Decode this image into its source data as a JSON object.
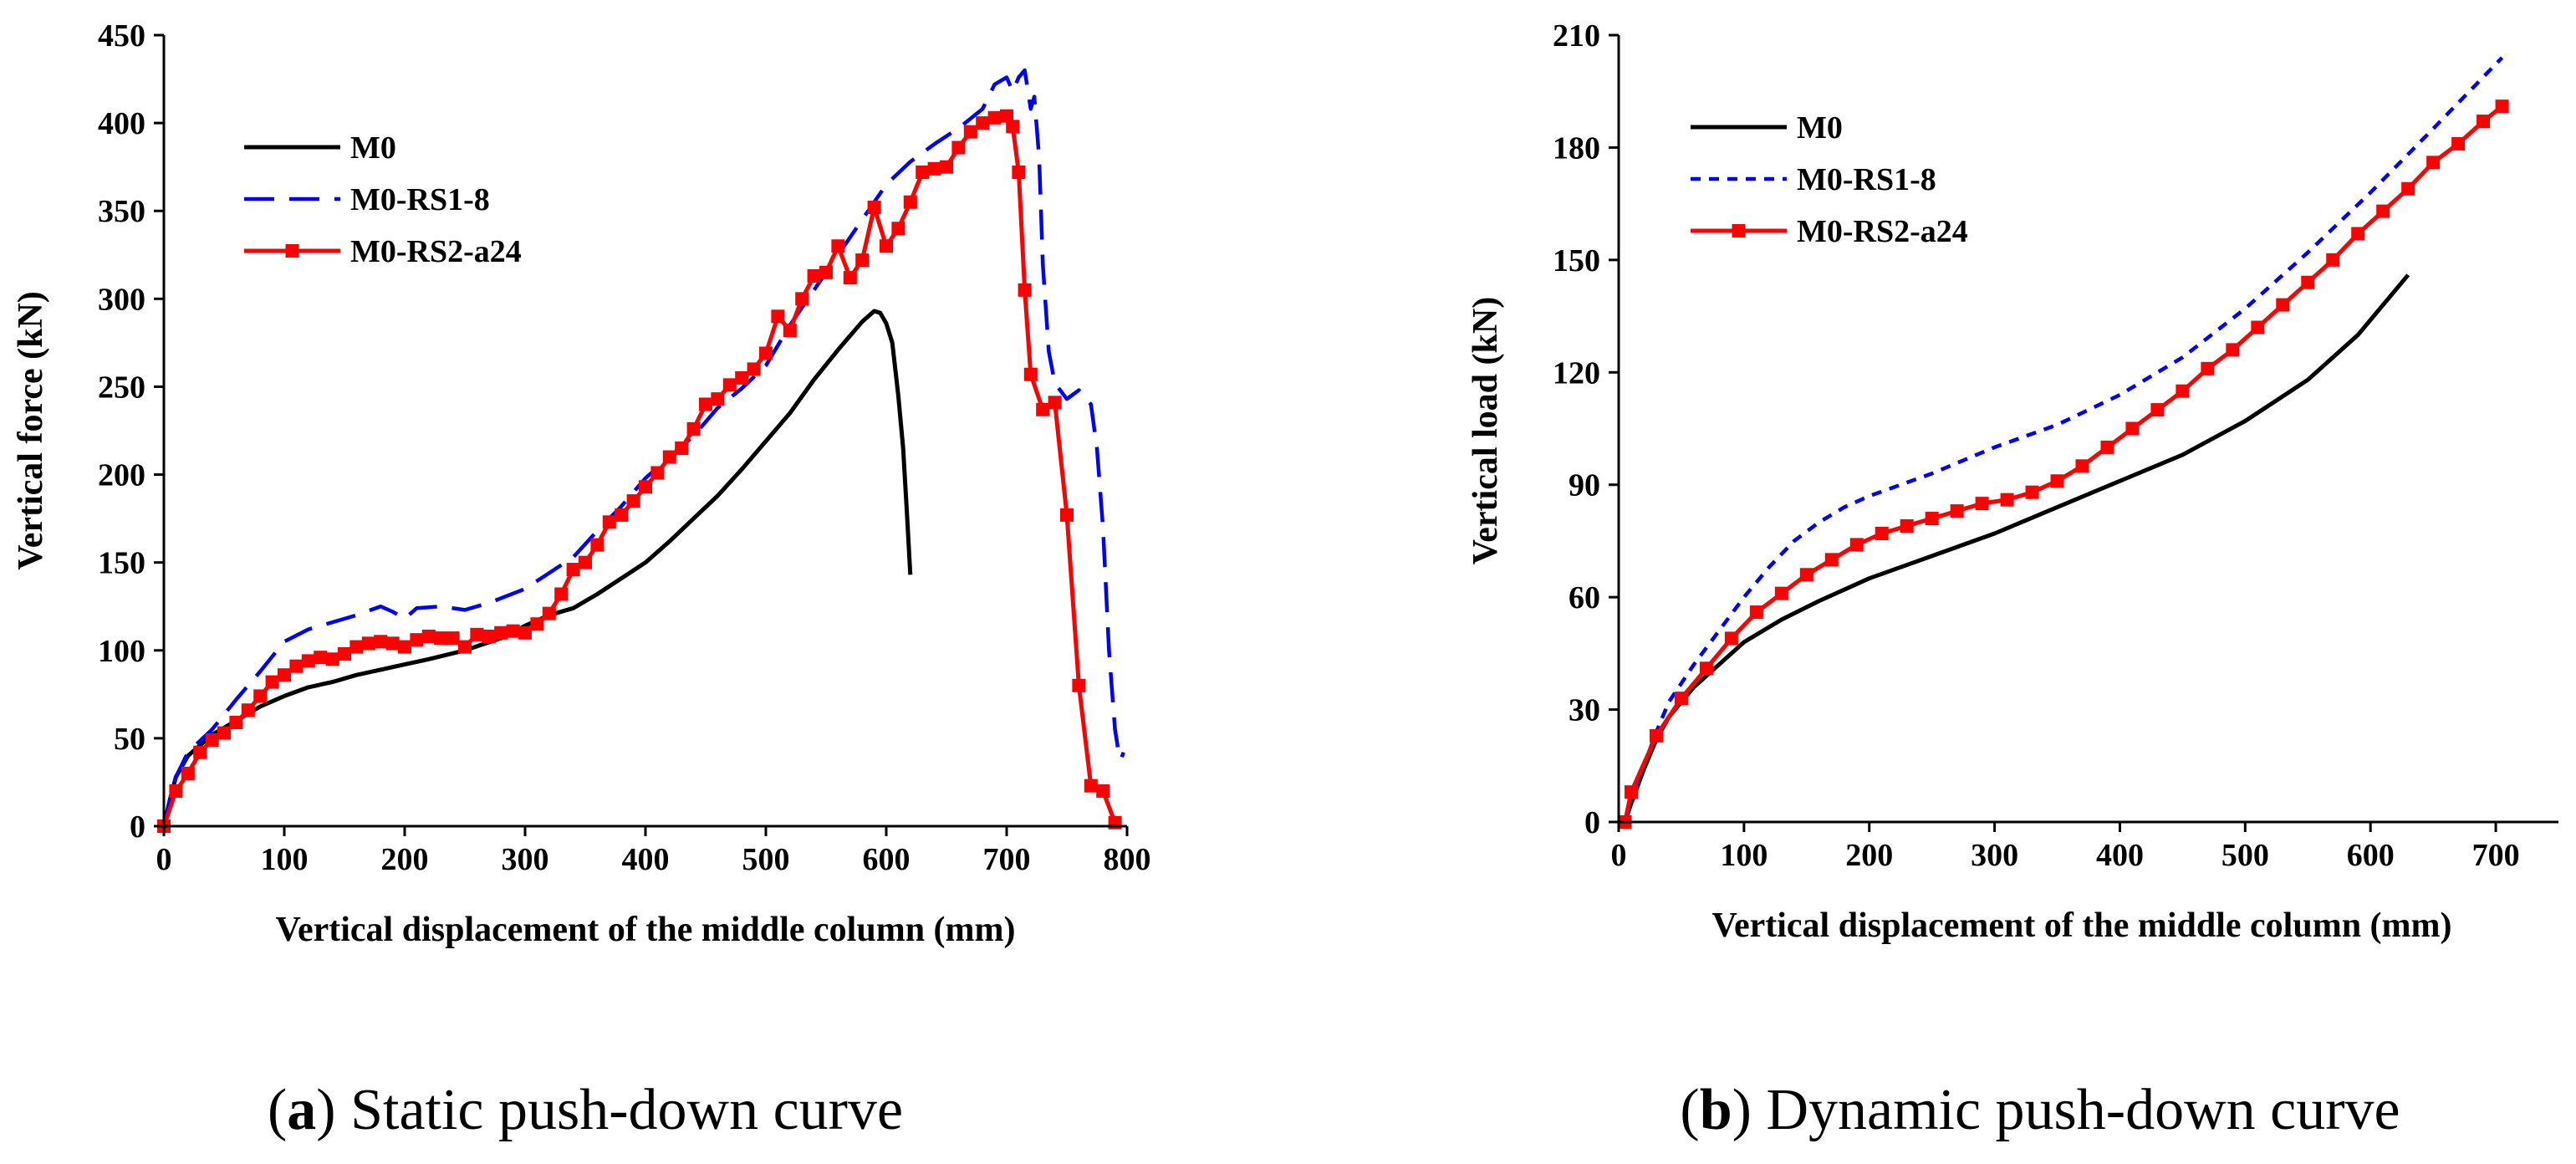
{
  "chart_data": [
    {
      "type": "line",
      "caption_letter": "a",
      "caption_text": "Static push-down curve",
      "xlabel": "Vertical displacement of the middle column (mm)",
      "ylabel": "Vertical force (kN)",
      "xlim": [
        0,
        800
      ],
      "ylim": [
        0,
        450
      ],
      "xticks": [
        0,
        100,
        200,
        300,
        400,
        500,
        600,
        700,
        800
      ],
      "yticks": [
        0,
        50,
        100,
        150,
        200,
        250,
        300,
        350,
        400,
        450
      ],
      "legend_position": "top-left",
      "series": [
        {
          "name": "M0",
          "color": "#000000",
          "style": "solid",
          "marker": "none",
          "points": [
            [
              0,
              0
            ],
            [
              5,
              15
            ],
            [
              10,
              28
            ],
            [
              20,
              40
            ],
            [
              40,
              52
            ],
            [
              60,
              60
            ],
            [
              80,
              68
            ],
            [
              100,
              74
            ],
            [
              120,
              79
            ],
            [
              140,
              82
            ],
            [
              160,
              86
            ],
            [
              180,
              89
            ],
            [
              200,
              92
            ],
            [
              220,
              95
            ],
            [
              250,
              100
            ],
            [
              280,
              107
            ],
            [
              300,
              114
            ],
            [
              320,
              120
            ],
            [
              340,
              124
            ],
            [
              360,
              132
            ],
            [
              380,
              141
            ],
            [
              400,
              150
            ],
            [
              420,
              162
            ],
            [
              440,
              175
            ],
            [
              460,
              188
            ],
            [
              480,
              203
            ],
            [
              500,
              219
            ],
            [
              520,
              235
            ],
            [
              540,
              254
            ],
            [
              560,
              271
            ],
            [
              580,
              287
            ],
            [
              590,
              293
            ],
            [
              595,
              292
            ],
            [
              600,
              286
            ],
            [
              605,
              275
            ],
            [
              610,
              245
            ],
            [
              614,
              215
            ],
            [
              617,
              180
            ],
            [
              620,
              143
            ]
          ]
        },
        {
          "name": "M0-RS1-8",
          "color": "#0000ff",
          "style": "dashed",
          "marker": "none",
          "points": [
            [
              0,
              0
            ],
            [
              5,
              15
            ],
            [
              10,
              28
            ],
            [
              20,
              42
            ],
            [
              40,
              55
            ],
            [
              60,
              72
            ],
            [
              80,
              88
            ],
            [
              100,
              105
            ],
            [
              120,
              112
            ],
            [
              140,
              116
            ],
            [
              160,
              120
            ],
            [
              180,
              125
            ],
            [
              190,
              122
            ],
            [
              200,
              118
            ],
            [
              210,
              124
            ],
            [
              230,
              125
            ],
            [
              250,
              123
            ],
            [
              270,
              127
            ],
            [
              300,
              135
            ],
            [
              320,
              144
            ],
            [
              340,
              153
            ],
            [
              360,
              168
            ],
            [
              380,
              182
            ],
            [
              400,
              198
            ],
            [
              420,
              210
            ],
            [
              440,
              222
            ],
            [
              460,
              238
            ],
            [
              480,
              249
            ],
            [
              500,
              262
            ],
            [
              520,
              285
            ],
            [
              540,
              305
            ],
            [
              560,
              325
            ],
            [
              580,
              345
            ],
            [
              600,
              365
            ],
            [
              620,
              378
            ],
            [
              640,
              388
            ],
            [
              660,
              397
            ],
            [
              680,
              408
            ],
            [
              690,
              422
            ],
            [
              700,
              426
            ],
            [
              705,
              418
            ],
            [
              710,
              426
            ],
            [
              715,
              430
            ],
            [
              720,
              408
            ],
            [
              723,
              415
            ],
            [
              727,
              380
            ],
            [
              730,
              320
            ],
            [
              735,
              270
            ],
            [
              740,
              252
            ],
            [
              750,
              243
            ],
            [
              760,
              248
            ],
            [
              770,
              240
            ],
            [
              775,
              215
            ],
            [
              780,
              170
            ],
            [
              785,
              100
            ],
            [
              790,
              55
            ],
            [
              793,
              42
            ],
            [
              795,
              38
            ],
            [
              797,
              42
            ]
          ]
        },
        {
          "name": "M0-RS2-a24",
          "color": "#ff0000",
          "style": "solid",
          "marker": "square",
          "points": [
            [
              0,
              0
            ],
            [
              10,
              20
            ],
            [
              20,
              30
            ],
            [
              30,
              42
            ],
            [
              40,
              49
            ],
            [
              50,
              53
            ],
            [
              60,
              59
            ],
            [
              70,
              66
            ],
            [
              80,
              74
            ],
            [
              90,
              82
            ],
            [
              100,
              86
            ],
            [
              110,
              91
            ],
            [
              120,
              94
            ],
            [
              130,
              96
            ],
            [
              140,
              95
            ],
            [
              150,
              98
            ],
            [
              160,
              102
            ],
            [
              170,
              104
            ],
            [
              180,
              105
            ],
            [
              190,
              104
            ],
            [
              200,
              102
            ],
            [
              210,
              106
            ],
            [
              220,
              108
            ],
            [
              230,
              107
            ],
            [
              240,
              107
            ],
            [
              250,
              102
            ],
            [
              260,
              109
            ],
            [
              270,
              108
            ],
            [
              280,
              110
            ],
            [
              290,
              111
            ],
            [
              300,
              110
            ],
            [
              310,
              115
            ],
            [
              320,
              121
            ],
            [
              330,
              132
            ],
            [
              340,
              146
            ],
            [
              350,
              150
            ],
            [
              360,
              160
            ],
            [
              370,
              173
            ],
            [
              380,
              177
            ],
            [
              390,
              185
            ],
            [
              400,
              193
            ],
            [
              410,
              201
            ],
            [
              420,
              210
            ],
            [
              430,
              215
            ],
            [
              440,
              226
            ],
            [
              450,
              240
            ],
            [
              460,
              243
            ],
            [
              470,
              251
            ],
            [
              480,
              255
            ],
            [
              490,
              260
            ],
            [
              500,
              269
            ],
            [
              510,
              290
            ],
            [
              520,
              282
            ],
            [
              530,
              300
            ],
            [
              540,
              313
            ],
            [
              550,
              315
            ],
            [
              560,
              330
            ],
            [
              570,
              312
            ],
            [
              580,
              322
            ],
            [
              590,
              352
            ],
            [
              600,
              330
            ],
            [
              610,
              340
            ],
            [
              620,
              355
            ],
            [
              630,
              372
            ],
            [
              640,
              374
            ],
            [
              650,
              375
            ],
            [
              660,
              386
            ],
            [
              670,
              395
            ],
            [
              680,
              400
            ],
            [
              690,
              403
            ],
            [
              700,
              404
            ],
            [
              705,
              398
            ],
            [
              710,
              372
            ],
            [
              715,
              305
            ],
            [
              720,
              257
            ],
            [
              730,
              237
            ],
            [
              740,
              241
            ],
            [
              750,
              177
            ],
            [
              760,
              80
            ],
            [
              770,
              23
            ],
            [
              780,
              20
            ],
            [
              790,
              2
            ]
          ]
        }
      ]
    },
    {
      "type": "line",
      "caption_letter": "b",
      "caption_text": "Dynamic push-down curve",
      "xlabel": "Vertical displacement of the middle column (mm)",
      "ylabel": "Vertical load (kN)",
      "xlim": [
        0,
        750
      ],
      "ylim": [
        0,
        210
      ],
      "xticks": [
        0,
        100,
        200,
        300,
        400,
        500,
        600,
        700
      ],
      "yticks": [
        0,
        30,
        60,
        90,
        120,
        150,
        180,
        210
      ],
      "legend_position": "top-left",
      "series": [
        {
          "name": "M0",
          "color": "#000000",
          "style": "solid",
          "marker": "none",
          "points": [
            [
              5,
              0
            ],
            [
              10,
              5
            ],
            [
              20,
              14
            ],
            [
              30,
              22
            ],
            [
              40,
              28
            ],
            [
              60,
              36
            ],
            [
              80,
              42
            ],
            [
              100,
              48
            ],
            [
              130,
              54
            ],
            [
              160,
              59
            ],
            [
              200,
              65
            ],
            [
              250,
              71
            ],
            [
              300,
              77
            ],
            [
              350,
              84
            ],
            [
              400,
              91
            ],
            [
              450,
              98
            ],
            [
              500,
              107
            ],
            [
              550,
              118
            ],
            [
              590,
              130
            ],
            [
              630,
              146
            ]
          ]
        },
        {
          "name": "M0-RS1-8",
          "color": "#0000ff",
          "style": "dotted",
          "marker": "none",
          "points": [
            [
              5,
              0
            ],
            [
              10,
              6
            ],
            [
              20,
              15
            ],
            [
              30,
              24
            ],
            [
              40,
              32
            ],
            [
              60,
              42
            ],
            [
              80,
              51
            ],
            [
              100,
              60
            ],
            [
              120,
              68
            ],
            [
              140,
              75
            ],
            [
              160,
              80
            ],
            [
              180,
              84
            ],
            [
              200,
              87
            ],
            [
              250,
              93
            ],
            [
              300,
              100
            ],
            [
              350,
              106
            ],
            [
              400,
              114
            ],
            [
              450,
              124
            ],
            [
              500,
              137
            ],
            [
              550,
              152
            ],
            [
              600,
              168
            ],
            [
              650,
              185
            ],
            [
              705,
              204
            ]
          ]
        },
        {
          "name": "M0-RS2-a24",
          "color": "#ff0000",
          "style": "solid",
          "marker": "square",
          "points": [
            [
              5,
              0
            ],
            [
              10,
              8
            ],
            [
              30,
              23
            ],
            [
              50,
              33
            ],
            [
              70,
              41
            ],
            [
              90,
              49
            ],
            [
              110,
              56
            ],
            [
              130,
              61
            ],
            [
              150,
              66
            ],
            [
              170,
              70
            ],
            [
              190,
              74
            ],
            [
              210,
              77
            ],
            [
              230,
              79
            ],
            [
              250,
              81
            ],
            [
              270,
              83
            ],
            [
              290,
              85
            ],
            [
              310,
              86
            ],
            [
              330,
              88
            ],
            [
              350,
              91
            ],
            [
              370,
              95
            ],
            [
              390,
              100
            ],
            [
              410,
              105
            ],
            [
              430,
              110
            ],
            [
              450,
              115
            ],
            [
              470,
              121
            ],
            [
              490,
              126
            ],
            [
              510,
              132
            ],
            [
              530,
              138
            ],
            [
              550,
              144
            ],
            [
              570,
              150
            ],
            [
              590,
              157
            ],
            [
              610,
              163
            ],
            [
              630,
              169
            ],
            [
              650,
              176
            ],
            [
              670,
              181
            ],
            [
              690,
              187
            ],
            [
              705,
              191
            ]
          ]
        }
      ]
    }
  ]
}
